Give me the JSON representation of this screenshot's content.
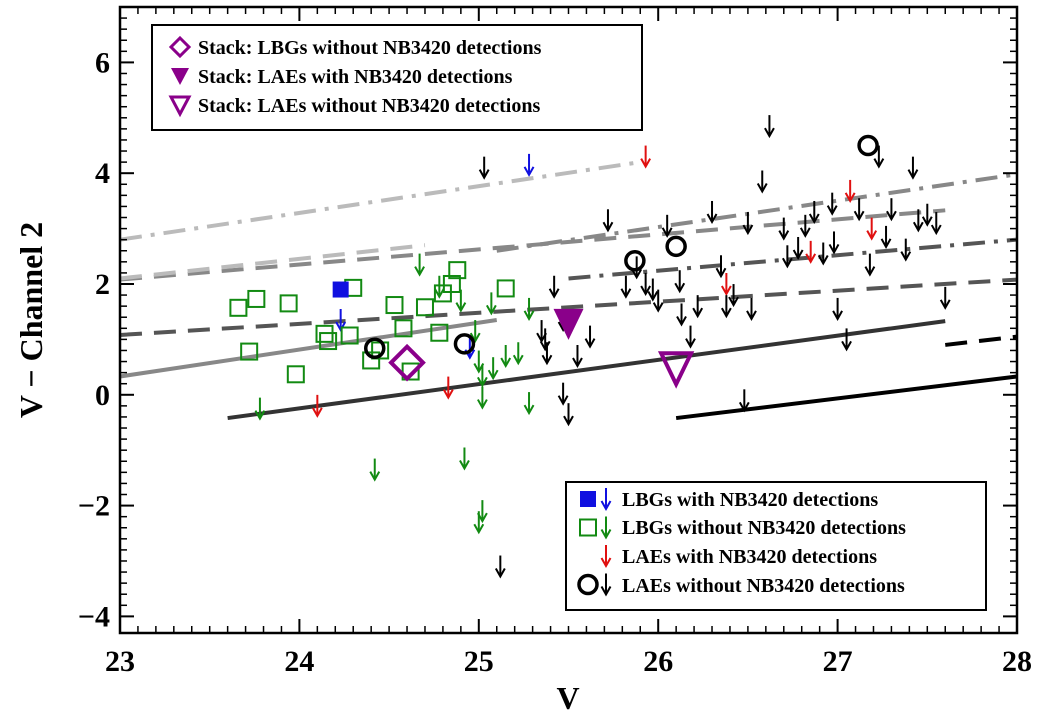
{
  "chart_data": {
    "type": "scatter",
    "xlabel": "V",
    "ylabel": "V − Channel 2",
    "xlim": [
      23,
      28
    ],
    "ylim": [
      -4.3,
      7
    ],
    "xticks": [
      23,
      24,
      25,
      26,
      27,
      28
    ],
    "yticks": [
      -4,
      -2,
      0,
      2,
      4,
      6
    ],
    "xtick_labels": [
      "23",
      "24",
      "25",
      "26",
      "27",
      "28"
    ],
    "ytick_labels": [
      "−4",
      "−2",
      "0",
      "2",
      "4",
      "6"
    ],
    "grid": false,
    "colors": {
      "green": "#128a12",
      "blue": "#1010e0",
      "red": "#e01010",
      "black": "#000000",
      "purple": "#8a008a"
    },
    "legend_top": {
      "placement": "top-left",
      "entries": [
        {
          "label": "Stack: LBGs without NB3420 detections",
          "marker": "diamond-open",
          "color": "#8a008a"
        },
        {
          "label": "Stack: LAEs with NB3420 detections",
          "marker": "triangle-down-filled",
          "color": "#8a008a"
        },
        {
          "label": "Stack: LAEs without NB3420 detections",
          "marker": "triangle-down-open",
          "color": "#8a008a"
        }
      ]
    },
    "legend_bottom": {
      "placement": "bottom-right",
      "entries": [
        {
          "label": "LBGs with NB3420 detections",
          "marker": "square-filled",
          "arrow": true,
          "color": "#1010e0",
          "arrow_color": "#1010e0"
        },
        {
          "label": "LBGs without NB3420 detections",
          "marker": "square-open",
          "arrow": true,
          "color": "#128a12",
          "arrow_color": "#128a12"
        },
        {
          "label": "LAEs with NB3420 detections",
          "marker": "none",
          "arrow": true,
          "color": "#e01010",
          "arrow_color": "#e01010"
        },
        {
          "label": "LAEs without NB3420 detections",
          "marker": "circle-open",
          "arrow": true,
          "color": "#000000",
          "arrow_color": "#000000"
        }
      ]
    },
    "lines": [
      {
        "style": "solid",
        "color": "#333333",
        "points": [
          [
            23.6,
            -0.42
          ],
          [
            27.6,
            1.33
          ]
        ]
      },
      {
        "style": "solid",
        "color": "#888888",
        "points": [
          [
            23.0,
            0.33
          ],
          [
            25.1,
            1.35
          ]
        ]
      },
      {
        "style": "solid",
        "color": "#000000",
        "points": [
          [
            26.1,
            -0.42
          ],
          [
            28.0,
            0.33
          ]
        ]
      },
      {
        "style": "dashed",
        "color": "#555555",
        "points": [
          [
            23.0,
            1.08
          ],
          [
            28.0,
            2.08
          ]
        ]
      },
      {
        "style": "dashed",
        "color": "#888888",
        "points": [
          [
            23.0,
            2.08
          ],
          [
            27.6,
            3.33
          ]
        ]
      },
      {
        "style": "dashed",
        "color": "#bbbbbb",
        "points": [
          [
            23.0,
            2.1
          ],
          [
            24.7,
            2.7
          ]
        ]
      },
      {
        "style": "dashed",
        "color": "#000000",
        "points": [
          [
            27.6,
            0.9
          ],
          [
            28.0,
            1.05
          ]
        ]
      },
      {
        "style": "dashdot",
        "color": "#555555",
        "points": [
          [
            25.5,
            2.1
          ],
          [
            28.0,
            2.8
          ]
        ]
      },
      {
        "style": "dashdot",
        "color": "#888888",
        "points": [
          [
            25.1,
            2.6
          ],
          [
            28.0,
            3.98
          ]
        ]
      },
      {
        "style": "dashdot",
        "color": "#bbbbbb",
        "points": [
          [
            23.0,
            2.8
          ],
          [
            25.9,
            4.2
          ]
        ]
      }
    ],
    "series": [
      {
        "name": "LBGs with NB3420 detections",
        "marker": "square-filled",
        "color": "#1010e0",
        "points": [
          [
            24.23,
            1.9
          ]
        ]
      },
      {
        "name": "LBGs with NB3420 detections (upper limits)",
        "marker": "arrow-down",
        "color": "#1010e0",
        "points": [
          [
            24.23,
            1.35
          ],
          [
            25.28,
            4.15
          ],
          [
            24.95,
            0.85
          ]
        ]
      },
      {
        "name": "LBGs without NB3420 detections",
        "marker": "square-open",
        "color": "#128a12",
        "points": [
          [
            23.66,
            1.57
          ],
          [
            23.76,
            1.73
          ],
          [
            23.72,
            0.78
          ],
          [
            23.94,
            1.65
          ],
          [
            23.98,
            0.37
          ],
          [
            24.16,
            0.97
          ],
          [
            24.14,
            1.1
          ],
          [
            24.3,
            1.93
          ],
          [
            24.28,
            1.07
          ],
          [
            24.4,
            0.62
          ],
          [
            24.53,
            1.62
          ],
          [
            24.58,
            1.2
          ],
          [
            24.62,
            0.42
          ],
          [
            24.7,
            1.58
          ],
          [
            24.78,
            1.12
          ],
          [
            24.8,
            1.83
          ],
          [
            24.85,
            2.0
          ],
          [
            24.88,
            2.25
          ],
          [
            25.15,
            1.92
          ],
          [
            24.45,
            0.8
          ]
        ]
      },
      {
        "name": "LBGs without NB3420 detections (upper limits)",
        "marker": "arrow-down",
        "color": "#128a12",
        "points": [
          [
            23.78,
            -0.25
          ],
          [
            24.42,
            -1.35
          ],
          [
            24.67,
            2.35
          ],
          [
            24.78,
            1.95
          ],
          [
            24.9,
            1.7
          ],
          [
            24.98,
            1.15
          ],
          [
            25.0,
            0.6
          ],
          [
            25.02,
            0.35
          ],
          [
            25.02,
            -0.05
          ],
          [
            25.02,
            -2.1
          ],
          [
            25.07,
            1.65
          ],
          [
            25.15,
            0.7
          ],
          [
            25.22,
            0.75
          ],
          [
            25.28,
            1.55
          ],
          [
            25.28,
            -0.15
          ],
          [
            25.08,
            0.48
          ],
          [
            24.92,
            -1.15
          ],
          [
            25.0,
            -2.3
          ]
        ]
      },
      {
        "name": "LAEs with NB3420 detections (upper limits)",
        "marker": "arrow-down",
        "color": "#e01010",
        "points": [
          [
            24.1,
            -0.2
          ],
          [
            24.83,
            0.13
          ],
          [
            25.93,
            4.3
          ],
          [
            26.38,
            2.0
          ],
          [
            26.85,
            2.58
          ],
          [
            27.07,
            3.68
          ],
          [
            27.19,
            3.0
          ]
        ]
      },
      {
        "name": "LAEs without NB3420 detections",
        "marker": "circle-open",
        "color": "#000000",
        "points": [
          [
            24.42,
            0.84
          ],
          [
            24.92,
            0.92
          ],
          [
            25.87,
            2.42
          ],
          [
            26.1,
            2.68
          ],
          [
            27.17,
            4.5
          ]
        ]
      },
      {
        "name": "LAEs without NB3420 detections (upper limits)",
        "marker": "arrow-down",
        "color": "#000000",
        "points": [
          [
            25.03,
            4.1
          ],
          [
            25.12,
            -3.1
          ],
          [
            25.35,
            1.15
          ],
          [
            25.37,
            1.0
          ],
          [
            25.38,
            0.75
          ],
          [
            25.42,
            1.95
          ],
          [
            25.47,
            0.02
          ],
          [
            25.5,
            -0.35
          ],
          [
            25.47,
            1.35
          ],
          [
            25.55,
            0.7
          ],
          [
            25.62,
            1.05
          ],
          [
            25.72,
            3.15
          ],
          [
            25.82,
            1.95
          ],
          [
            25.88,
            2.3
          ],
          [
            25.93,
            2.0
          ],
          [
            25.97,
            1.9
          ],
          [
            26.0,
            1.7
          ],
          [
            26.05,
            3.05
          ],
          [
            26.12,
            2.05
          ],
          [
            26.13,
            1.45
          ],
          [
            26.18,
            1.05
          ],
          [
            26.22,
            1.6
          ],
          [
            26.3,
            3.3
          ],
          [
            26.35,
            2.32
          ],
          [
            26.38,
            1.6
          ],
          [
            26.42,
            1.8
          ],
          [
            26.5,
            3.1
          ],
          [
            26.48,
            -0.1
          ],
          [
            26.52,
            1.55
          ],
          [
            26.58,
            3.85
          ],
          [
            26.62,
            4.85
          ],
          [
            26.7,
            3.0
          ],
          [
            26.72,
            2.5
          ],
          [
            26.78,
            2.65
          ],
          [
            26.82,
            3.05
          ],
          [
            26.87,
            3.3
          ],
          [
            26.92,
            2.55
          ],
          [
            26.97,
            3.45
          ],
          [
            26.98,
            2.75
          ],
          [
            27.0,
            1.55
          ],
          [
            27.05,
            1.0
          ],
          [
            27.12,
            3.35
          ],
          [
            27.18,
            2.35
          ],
          [
            27.23,
            4.3
          ],
          [
            27.27,
            2.85
          ],
          [
            27.3,
            3.35
          ],
          [
            27.38,
            2.62
          ],
          [
            27.42,
            4.1
          ],
          [
            27.45,
            3.15
          ],
          [
            27.5,
            3.25
          ],
          [
            27.55,
            3.1
          ],
          [
            27.6,
            1.75
          ]
        ]
      },
      {
        "name": "Stack: LBGs without NB3420 detections",
        "marker": "diamond-open-large",
        "color": "#8a008a",
        "points": [
          [
            24.6,
            0.58
          ]
        ]
      },
      {
        "name": "Stack: LAEs with NB3420 detections",
        "marker": "triangle-down-filled-large",
        "color": "#8a008a",
        "points": [
          [
            25.5,
            1.28
          ]
        ]
      },
      {
        "name": "Stack: LAEs without NB3420 detections",
        "marker": "triangle-down-open-large",
        "color": "#8a008a",
        "points": [
          [
            26.1,
            0.48
          ]
        ]
      }
    ]
  }
}
